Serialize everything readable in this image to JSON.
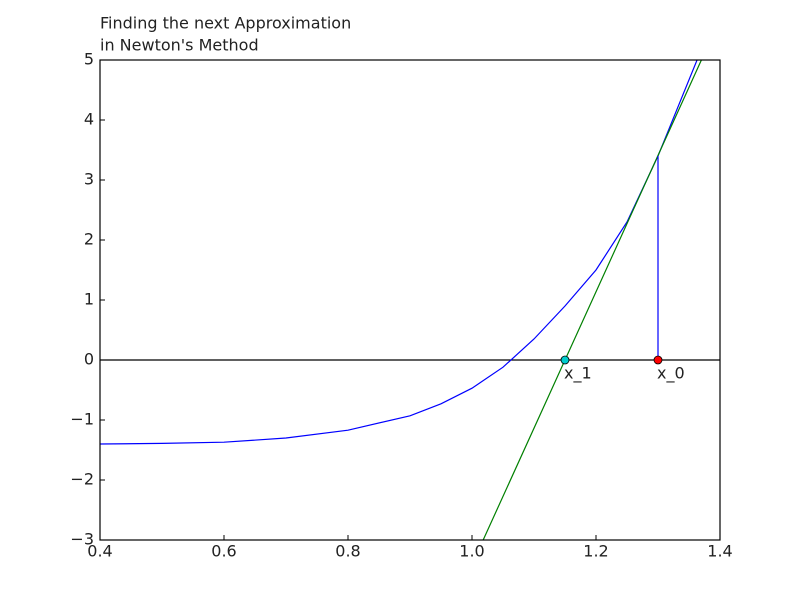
{
  "chart_data": {
    "type": "line",
    "title": [
      "Finding the next Approximation",
      "in Newton's Method"
    ],
    "xlim": [
      0.4,
      1.4
    ],
    "xticks": [
      0.4,
      0.6,
      0.8,
      {
        "value": 1,
        "label": "1.0"
      },
      1.2,
      1.4
    ],
    "ylim": [
      -3,
      5
    ],
    "yticks": [
      {
        "value": -3,
        "label": "−3"
      },
      {
        "value": -2,
        "label": "−2"
      },
      {
        "value": -1,
        "label": "−1"
      },
      0,
      1,
      2,
      3,
      4,
      5
    ],
    "axhline": {
      "y": 0,
      "color": "#000000"
    },
    "series": [
      {
        "color": "#0000ff",
        "x": [
          0.4,
          0.5,
          0.6,
          0.7,
          0.8,
          0.9,
          0.95,
          1.0,
          1.05,
          1.1,
          1.15,
          1.2,
          1.25,
          1.3,
          1.363
        ],
        "values": [
          -1.4,
          -1.39,
          -1.37,
          -1.3,
          -1.17,
          -0.93,
          -0.73,
          -0.47,
          -0.12,
          0.35,
          0.9,
          1.5,
          2.3,
          3.4,
          5
        ]
      },
      {
        "color": "#008000",
        "x": [
          1.018,
          1.37
        ],
        "values": [
          -3,
          5
        ]
      },
      {
        "color": "#0000ff",
        "x": [
          1.3,
          1.3
        ],
        "values": [
          0,
          3.4
        ]
      }
    ],
    "points": [
      {
        "label": "x_0",
        "x": 1.3,
        "y": 0,
        "color": "#ff0000"
      },
      {
        "label": "x_1",
        "x": 1.15,
        "y": 0,
        "color": "#00cccc"
      }
    ]
  }
}
